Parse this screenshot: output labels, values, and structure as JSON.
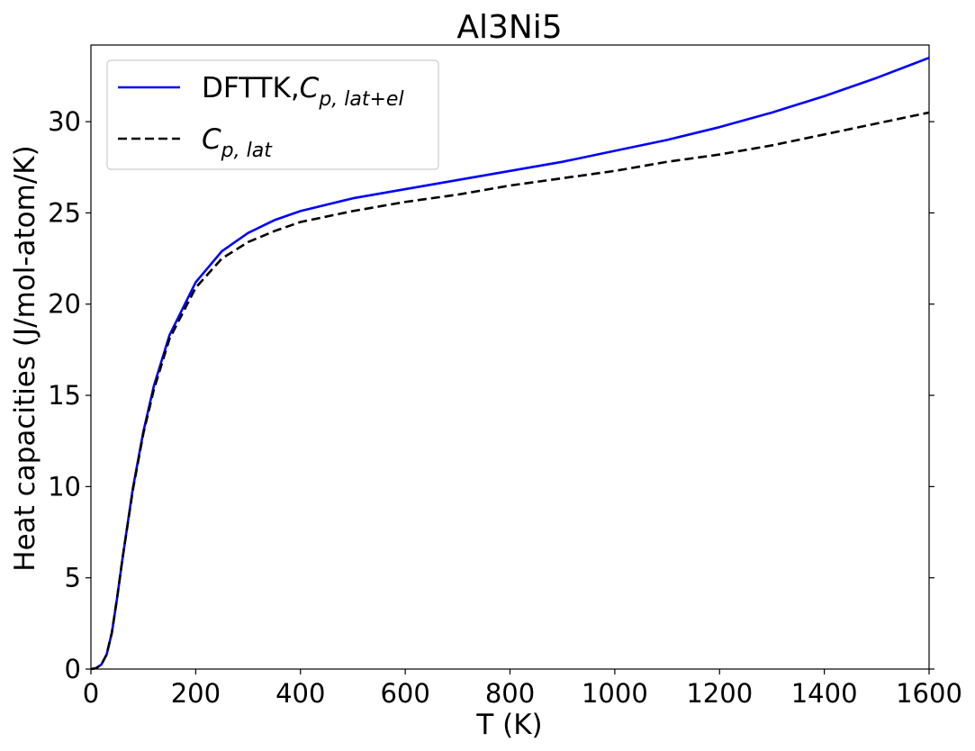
{
  "chart_data": {
    "type": "line",
    "title": "Al3Ni5",
    "xlabel": "T (K)",
    "ylabel": "Heat capacities (J/mol-atom/K)",
    "xlim": [
      0,
      1600
    ],
    "ylim": [
      0,
      34.2
    ],
    "xticks": [
      0,
      200,
      400,
      600,
      800,
      1000,
      1200,
      1400,
      1600
    ],
    "yticks": [
      0,
      5,
      10,
      15,
      20,
      25,
      30
    ],
    "grid": false,
    "legend_position": "top-left",
    "series": [
      {
        "name": "DFTTK,Cp,lat+el",
        "legend": {
          "prefix": "DFTTK,",
          "symbol": "C",
          "subscript": "p, lat+el"
        },
        "color": "#0000ff",
        "style": "solid",
        "x": [
          0,
          10,
          20,
          30,
          40,
          50,
          60,
          80,
          100,
          120,
          150,
          200,
          250,
          300,
          350,
          400,
          500,
          600,
          700,
          800,
          900,
          1000,
          1100,
          1200,
          1300,
          1400,
          1500,
          1600
        ],
        "y": [
          0,
          0.05,
          0.25,
          0.8,
          2.0,
          3.9,
          6.0,
          9.9,
          13.0,
          15.5,
          18.3,
          21.2,
          22.9,
          23.9,
          24.6,
          25.1,
          25.8,
          26.3,
          26.8,
          27.3,
          27.8,
          28.4,
          29.0,
          29.7,
          30.5,
          31.4,
          32.4,
          33.5
        ]
      },
      {
        "name": "Cp,lat",
        "legend": {
          "prefix": "",
          "symbol": "C",
          "subscript": "p, lat"
        },
        "color": "#000000",
        "style": "dashed",
        "x": [
          0,
          10,
          20,
          30,
          40,
          50,
          60,
          80,
          100,
          120,
          150,
          200,
          250,
          300,
          350,
          400,
          500,
          600,
          700,
          800,
          900,
          1000,
          1100,
          1200,
          1300,
          1400,
          1500,
          1600
        ],
        "y": [
          0,
          0.05,
          0.25,
          0.8,
          2.0,
          3.9,
          6.0,
          9.8,
          12.9,
          15.3,
          18.1,
          20.9,
          22.5,
          23.4,
          24.0,
          24.5,
          25.1,
          25.6,
          26.0,
          26.5,
          26.9,
          27.3,
          27.8,
          28.2,
          28.7,
          29.3,
          29.9,
          30.5
        ]
      }
    ]
  }
}
